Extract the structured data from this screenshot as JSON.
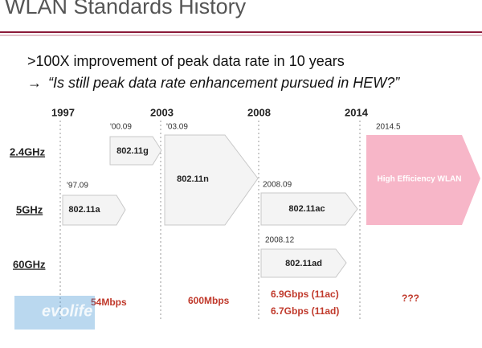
{
  "header": {
    "title": "WLAN Standards History"
  },
  "bullets": [
    ">100X improvement of peak data rate in 10 years",
    "→",
    "“Is still peak data rate enhancement pursued in HEW?”"
  ],
  "years": [
    "1997",
    "2003",
    "2008",
    "2014"
  ],
  "bands": [
    "2.4GHz",
    "5GHz",
    "60GHz"
  ],
  "standards": [
    {
      "date": "'00.09",
      "label": "802.11g"
    },
    {
      "date": "'97.09",
      "label": "802.11a"
    },
    {
      "date": "'03.09",
      "label": "802.11n"
    },
    {
      "date": "2008.09",
      "label": "802.11ac"
    },
    {
      "date": "2008.12",
      "label": "802.11ad"
    },
    {
      "date": "2014.5",
      "label": "High Efficiency WLAN"
    }
  ],
  "speeds": [
    "54Mbps",
    "600Mbps",
    "6.9Gbps (11ac)",
    "6.7Gbps (11ad)",
    "???"
  ],
  "watermark": "evolife"
}
